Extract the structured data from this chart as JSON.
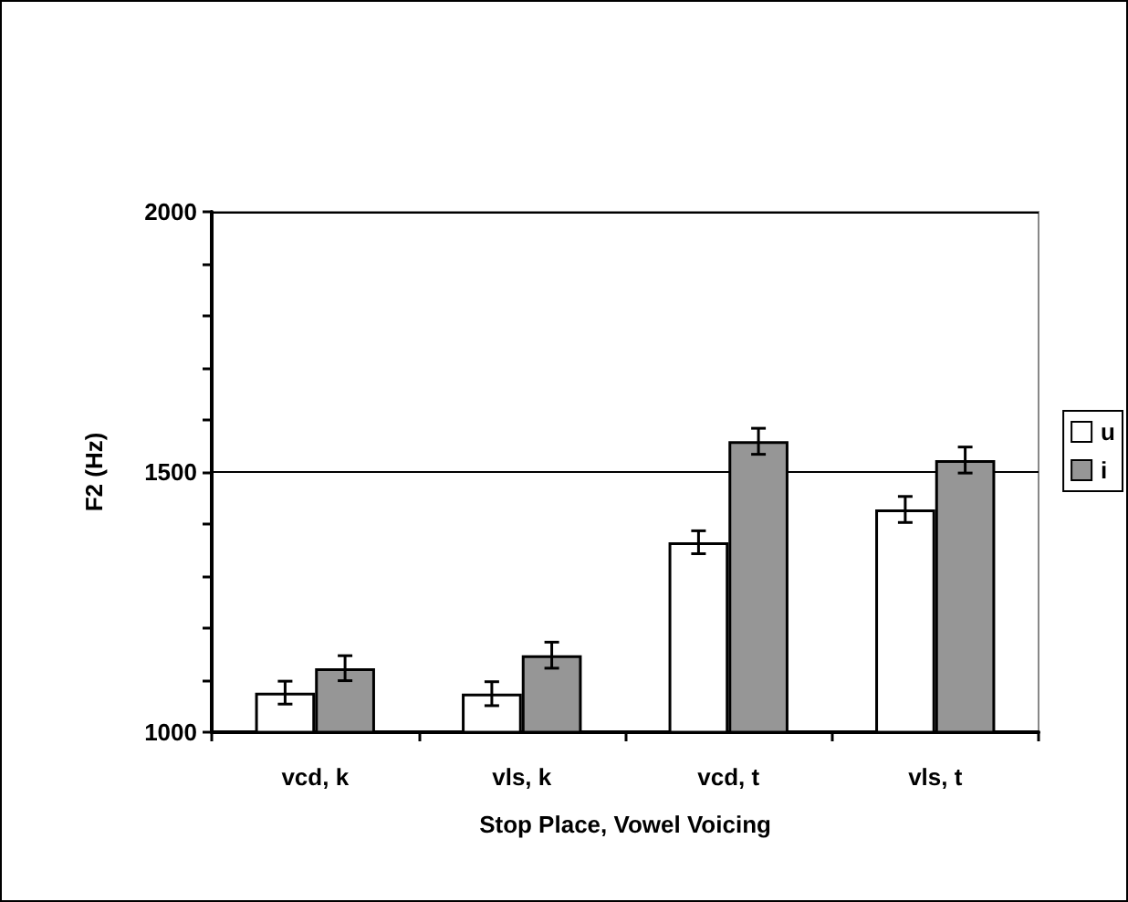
{
  "chart_data": {
    "type": "bar",
    "xlabel": "Stop Place, Vowel Voicing",
    "ylabel": "F2 (Hz)",
    "categories": [
      "vcd, k",
      "vls, k",
      "vcd, t",
      "vls, t"
    ],
    "series": [
      {
        "name": "u",
        "color": "#ffffff",
        "values": [
          1076,
          1074,
          1365,
          1428
        ],
        "errors": [
          22,
          23,
          22,
          25
        ]
      },
      {
        "name": "i",
        "color": "#969696",
        "values": [
          1123,
          1148,
          1559,
          1523
        ],
        "errors": [
          24,
          25,
          25,
          25
        ]
      }
    ],
    "ylim": [
      1000,
      2000
    ],
    "yticks": [
      1000,
      {
        "value": 1100,
        "label": null
      },
      {
        "value": 1200,
        "label": null
      },
      {
        "value": 1300,
        "label": null
      },
      {
        "value": 1400,
        "label": null
      },
      1500,
      {
        "value": 1600,
        "label": null
      },
      {
        "value": 1700,
        "label": null
      },
      {
        "value": 1800,
        "label": null
      },
      {
        "value": 1900,
        "label": null
      },
      2000
    ],
    "grid": "y",
    "legend": "right"
  }
}
